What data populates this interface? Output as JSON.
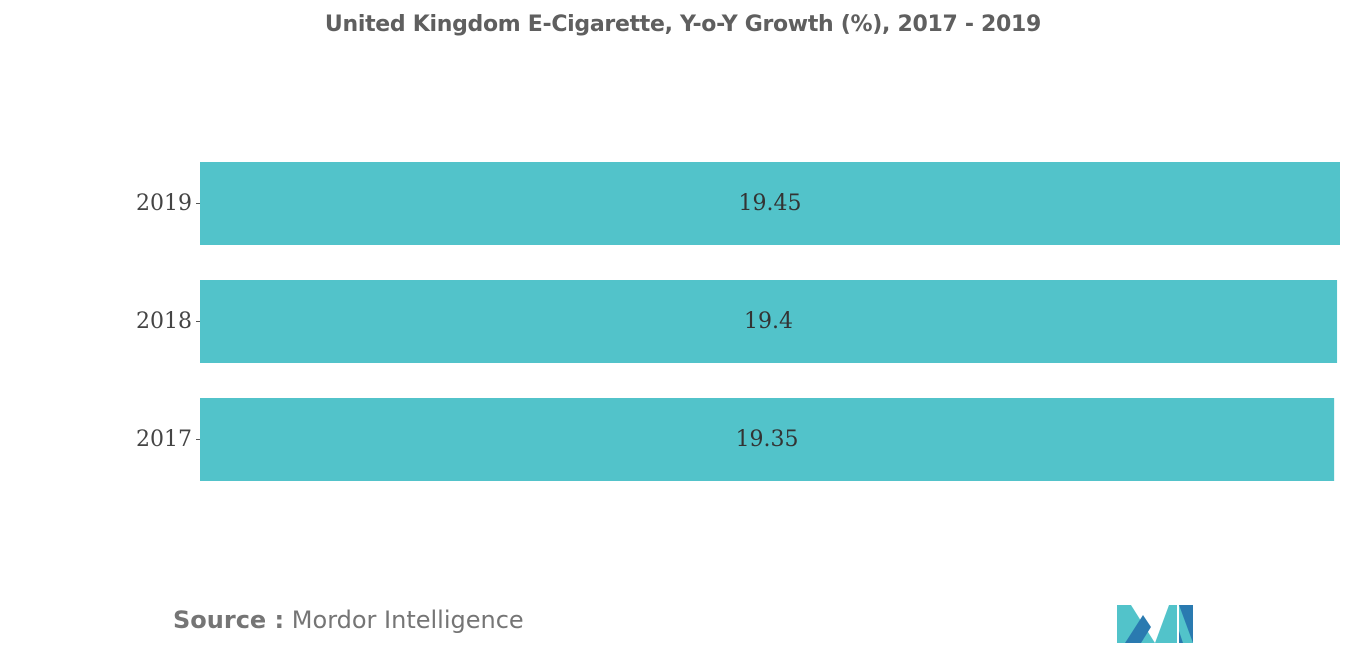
{
  "chart_data": {
    "type": "bar",
    "orientation": "horizontal",
    "title": "United Kingdom E-Cigarette, Y-o-Y Growth (%), 2017 - 2019",
    "categories": [
      "2019",
      "2018",
      "2017"
    ],
    "values": [
      19.45,
      19.4,
      19.35
    ],
    "data_labels": [
      "19.45",
      "19.4",
      "19.35"
    ],
    "xlabel": "",
    "ylabel": "",
    "xlim": [
      0,
      19.45
    ],
    "grid": false,
    "legend": "none",
    "bar_color": "#52c3ca"
  },
  "footer": {
    "source_label": "Source :",
    "source_text": "Mordor Intelligence"
  },
  "logo": {
    "name": "mordor-intelligence-logo",
    "colors": [
      "#52c3ca",
      "#2a7ab0"
    ]
  }
}
